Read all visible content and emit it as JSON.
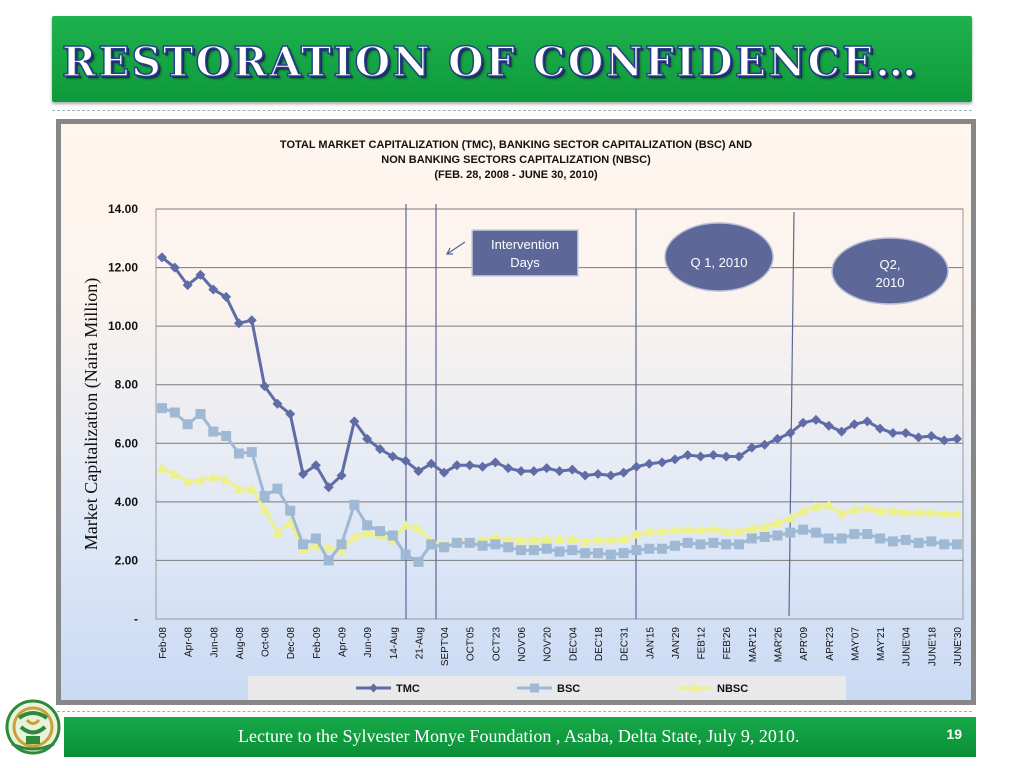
{
  "slide": {
    "title": "RESTORATION OF CONFIDENCE…",
    "footer": "Lecture to the Sylvester Monye Foundation , Asaba, Delta State, July 9, 2010.",
    "page_number": "19"
  },
  "colors": {
    "green": "#12a344",
    "tmc": "#5f6ca6",
    "bsc": "#9fb8d3",
    "nbsc": "#eef08a",
    "oval": "#5d6898",
    "callout": "#5d6898"
  },
  "annotations": {
    "intervention_line1": "Intervention",
    "intervention_line2": "Days",
    "q1": "Q 1, 2010",
    "q2_line1": "Q2,",
    "q2_line2": "2010"
  },
  "chart_data": {
    "type": "line",
    "title_lines": [
      "TOTAL MARKET CAPITALIZATION (TMC), BANKING SECTOR CAPITALIZATION (BSC) AND",
      "NON BANKING SECTORS  CAPITALIZATION (NBSC)",
      "(FEB. 28, 2008 - JUNE 30, 2010)"
    ],
    "ylabel": "Market Capitalization (Naira Million)",
    "ylim": [
      0,
      14
    ],
    "y_ticks": [
      "-",
      "2.00",
      "4.00",
      "6.00",
      "8.00",
      "10.00",
      "12.00",
      "14.00"
    ],
    "grid": true,
    "legend_position": "bottom",
    "x_labels": [
      "Feb-08",
      "Apr-08",
      "Jun-08",
      "Aug-08",
      "Oct-08",
      "Dec-08",
      "Feb-09",
      "Apr-09",
      "Jun-09",
      "14-Aug",
      "21-Aug",
      "SEPT'04",
      "OCT'05",
      "OCT'23",
      "NOV'06",
      "NOV'20",
      "DEC'04",
      "DEC'18",
      "DEC'31",
      "JAN'15",
      "JAN'29",
      "FEB'12",
      "FEB'26",
      "MAR'12",
      "MAR'26",
      "APR'09",
      "APR'23",
      "MAY'07",
      "MAY'21",
      "JUNE'04",
      "JUNE'18",
      "JUNE'30"
    ],
    "series": [
      {
        "name": "TMC",
        "values": [
          12.35,
          12.0,
          11.4,
          11.75,
          11.25,
          11.0,
          10.1,
          10.2,
          7.95,
          7.35,
          7.0,
          4.95,
          5.25,
          4.5,
          4.9,
          6.75,
          6.15,
          5.8,
          5.55,
          5.4,
          5.05,
          5.3,
          5.0,
          5.25,
          5.25,
          5.2,
          5.35,
          5.15,
          5.05,
          5.05,
          5.15,
          5.05,
          5.1,
          4.9,
          4.95,
          4.9,
          5.0,
          5.2,
          5.3,
          5.35,
          5.45,
          5.6,
          5.55,
          5.6,
          5.55,
          5.55,
          5.85,
          5.95,
          6.15,
          6.35,
          6.7,
          6.8,
          6.6,
          6.4,
          6.65,
          6.75,
          6.5,
          6.35,
          6.35,
          6.2,
          6.25,
          6.1,
          6.15
        ]
      },
      {
        "name": "BSC",
        "values": [
          7.2,
          7.05,
          6.65,
          7.0,
          6.4,
          6.25,
          5.65,
          5.7,
          4.2,
          4.45,
          3.7,
          2.55,
          2.75,
          2.0,
          2.55,
          3.9,
          3.2,
          3.0,
          2.85,
          2.2,
          1.95,
          2.55,
          2.45,
          2.6,
          2.6,
          2.5,
          2.55,
          2.45,
          2.35,
          2.35,
          2.4,
          2.3,
          2.35,
          2.25,
          2.25,
          2.2,
          2.25,
          2.35,
          2.4,
          2.4,
          2.5,
          2.6,
          2.55,
          2.6,
          2.55,
          2.55,
          2.75,
          2.8,
          2.85,
          2.95,
          3.05,
          2.95,
          2.75,
          2.75,
          2.9,
          2.9,
          2.75,
          2.65,
          2.7,
          2.6,
          2.65,
          2.55,
          2.55
        ]
      },
      {
        "name": "NBSC",
        "values": [
          5.15,
          4.95,
          4.7,
          4.75,
          4.85,
          4.75,
          4.45,
          4.45,
          3.75,
          2.95,
          3.3,
          2.4,
          2.5,
          2.45,
          2.35,
          2.8,
          2.95,
          2.85,
          2.7,
          3.2,
          3.1,
          2.65,
          2.55,
          2.65,
          2.65,
          2.7,
          2.8,
          2.7,
          2.7,
          2.7,
          2.75,
          2.75,
          2.75,
          2.65,
          2.7,
          2.7,
          2.75,
          2.9,
          3.0,
          3.0,
          3.05,
          3.05,
          3.05,
          3.1,
          3.0,
          3.0,
          3.1,
          3.15,
          3.3,
          3.45,
          3.7,
          3.85,
          3.9,
          3.6,
          3.75,
          3.8,
          3.7,
          3.7,
          3.65,
          3.65,
          3.65,
          3.6,
          3.6
        ]
      }
    ]
  }
}
